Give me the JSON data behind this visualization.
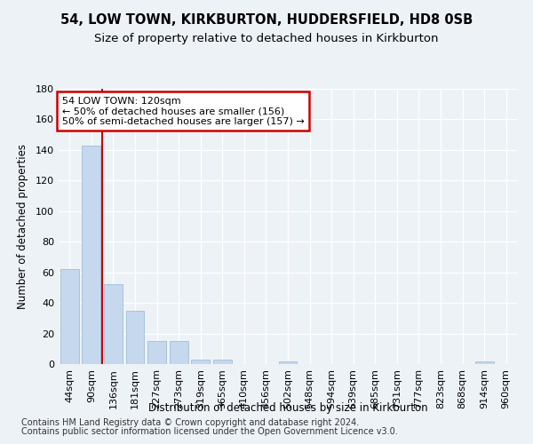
{
  "title1": "54, LOW TOWN, KIRKBURTON, HUDDERSFIELD, HD8 0SB",
  "title2": "Size of property relative to detached houses in Kirkburton",
  "xlabel": "Distribution of detached houses by size in Kirkburton",
  "ylabel": "Number of detached properties",
  "categories": [
    "44sqm",
    "90sqm",
    "136sqm",
    "181sqm",
    "227sqm",
    "273sqm",
    "319sqm",
    "365sqm",
    "410sqm",
    "456sqm",
    "502sqm",
    "548sqm",
    "594sqm",
    "639sqm",
    "685sqm",
    "731sqm",
    "777sqm",
    "823sqm",
    "868sqm",
    "914sqm",
    "960sqm"
  ],
  "values": [
    62,
    143,
    52,
    35,
    15,
    15,
    3,
    3,
    0,
    0,
    2,
    0,
    0,
    0,
    0,
    0,
    0,
    0,
    0,
    2,
    0
  ],
  "bar_color": "#c5d8ed",
  "bar_edge_color": "#a8c4dc",
  "red_line_x": 1.5,
  "annotation_line1": "54 LOW TOWN: 120sqm",
  "annotation_line2": "← 50% of detached houses are smaller (156)",
  "annotation_line3": "50% of semi-detached houses are larger (157) →",
  "annotation_box_color": "#ffffff",
  "annotation_box_edge_color": "#cc0000",
  "red_line_color": "#cc0000",
  "ylim": [
    0,
    180
  ],
  "yticks": [
    0,
    20,
    40,
    60,
    80,
    100,
    120,
    140,
    160,
    180
  ],
  "background_color": "#edf2f7",
  "grid_color": "#ffffff",
  "footer1": "Contains HM Land Registry data © Crown copyright and database right 2024.",
  "footer2": "Contains public sector information licensed under the Open Government Licence v3.0.",
  "title1_fontsize": 10.5,
  "title2_fontsize": 9.5,
  "annotation_fontsize": 8,
  "footer_fontsize": 7,
  "xlabel_fontsize": 8.5,
  "ylabel_fontsize": 8.5,
  "tick_fontsize": 8
}
